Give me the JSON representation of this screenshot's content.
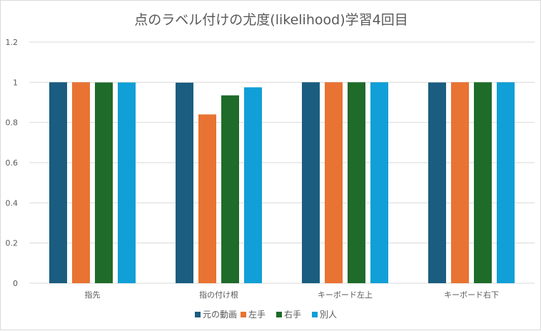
{
  "chart_data": {
    "type": "bar",
    "title": "点のラベル付けの尤度(likelihood)学習4回目",
    "xlabel": "",
    "ylabel": "",
    "ylim": [
      0,
      1.2
    ],
    "yticks": [
      "0",
      "0.2",
      "0.4",
      "0.6",
      "0.8",
      "1",
      "1.2"
    ],
    "grid": true,
    "legend_position": "bottom",
    "categories": [
      "指先",
      "指の付け根",
      "キーボード左上",
      "キーボード右下"
    ],
    "series": [
      {
        "name": "元の動画",
        "color": "#1a5d80",
        "values": [
          1.0,
          0.998,
          1.0,
          0.999
        ]
      },
      {
        "name": "左手",
        "color": "#e97332",
        "values": [
          1.0,
          0.84,
          1.0,
          1.0
        ]
      },
      {
        "name": "右手",
        "color": "#1e6b2a",
        "values": [
          0.999,
          0.935,
          1.0,
          1.0
        ]
      },
      {
        "name": "別人",
        "color": "#109fd6",
        "values": [
          0.999,
          0.975,
          1.0,
          1.0
        ]
      }
    ]
  }
}
